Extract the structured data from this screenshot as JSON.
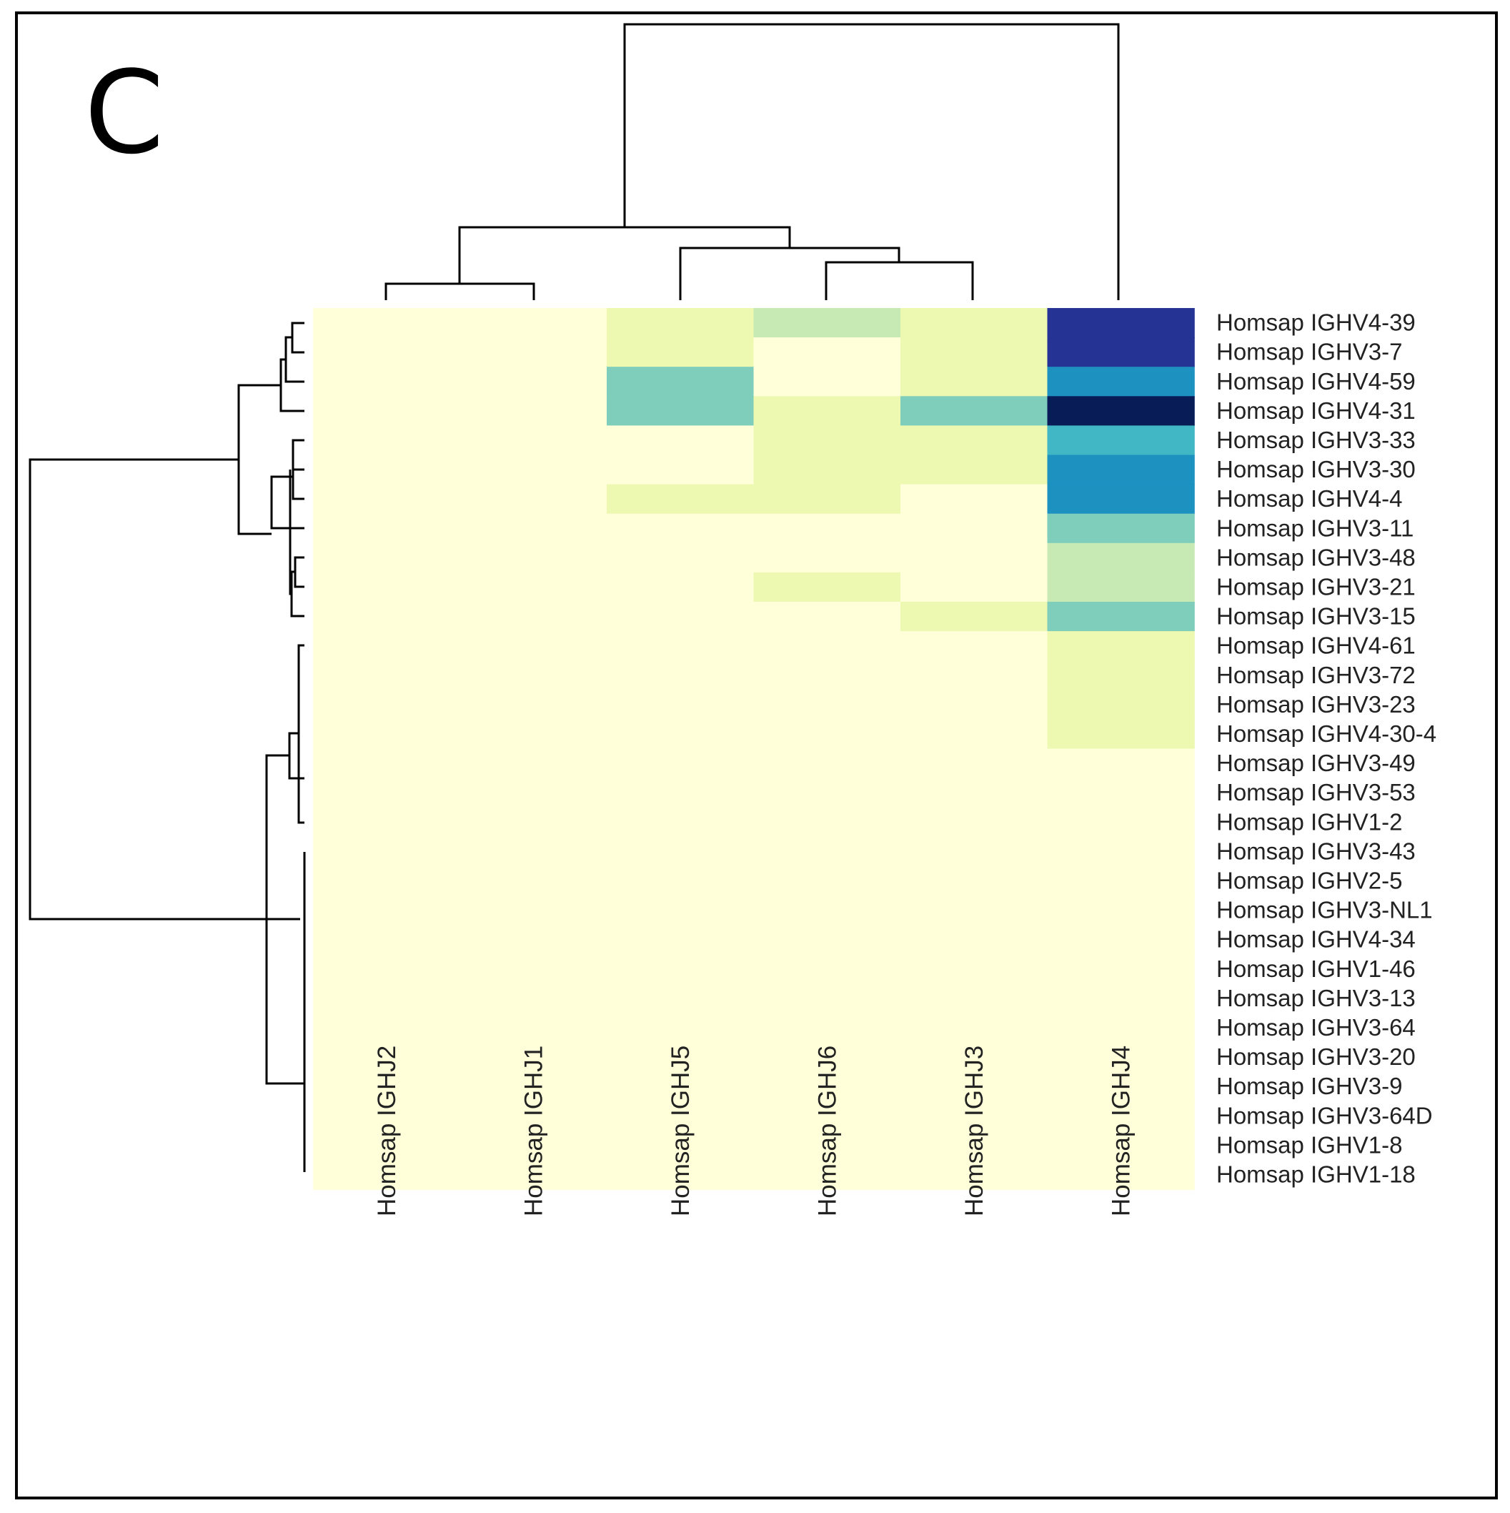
{
  "panel_label": "C",
  "chart_data": {
    "type": "heatmap",
    "title": "",
    "colorscale": [
      "#ffffd9",
      "#edf8b1",
      "#c7e9b4",
      "#7fcdbb",
      "#41b6c4",
      "#1d91c0",
      "#225ea8",
      "#253494",
      "#081d58"
    ],
    "columns": [
      "Homsap IGHJ2",
      "Homsap IGHJ1",
      "Homsap IGHJ5",
      "Homsap IGHJ6",
      "Homsap IGHJ3",
      "Homsap IGHJ4"
    ],
    "rows": [
      "Homsap IGHV4-39",
      "Homsap IGHV3-7",
      "Homsap IGHV4-59",
      "Homsap IGHV4-31",
      "Homsap IGHV3-33",
      "Homsap IGHV3-30",
      "Homsap IGHV4-4",
      "Homsap IGHV3-11",
      "Homsap IGHV3-48",
      "Homsap IGHV3-21",
      "Homsap IGHV3-15",
      "Homsap IGHV4-61",
      "Homsap IGHV3-72",
      "Homsap IGHV3-23",
      "Homsap IGHV4-30-4",
      "Homsap IGHV3-49",
      "Homsap IGHV3-53",
      "Homsap IGHV1-2",
      "Homsap IGHV3-43",
      "Homsap IGHV2-5",
      "Homsap IGHV3-NL1",
      "Homsap IGHV4-34",
      "Homsap IGHV1-46",
      "Homsap IGHV3-13",
      "Homsap IGHV3-64",
      "Homsap IGHV3-20",
      "Homsap IGHV3-9",
      "Homsap IGHV3-64D",
      "Homsap IGHV1-8",
      "Homsap IGHV1-18"
    ],
    "values": [
      [
        0,
        0,
        1,
        2,
        1,
        7
      ],
      [
        0,
        0,
        1,
        0,
        1,
        7
      ],
      [
        0,
        0,
        3,
        0,
        1,
        5
      ],
      [
        0,
        0,
        3,
        1,
        3,
        8
      ],
      [
        0,
        0,
        0,
        1,
        1,
        4
      ],
      [
        0,
        0,
        0,
        1,
        1,
        5
      ],
      [
        0,
        0,
        1,
        1,
        0,
        5
      ],
      [
        0,
        0,
        0,
        0,
        0,
        3
      ],
      [
        0,
        0,
        0,
        0,
        0,
        2
      ],
      [
        0,
        0,
        0,
        1,
        0,
        2
      ],
      [
        0,
        0,
        0,
        0,
        1,
        3
      ],
      [
        0,
        0,
        0,
        0,
        0,
        1
      ],
      [
        0,
        0,
        0,
        0,
        0,
        1
      ],
      [
        0,
        0,
        0,
        0,
        0,
        1
      ],
      [
        0,
        0,
        0,
        0,
        0,
        1
      ],
      [
        0,
        0,
        0,
        0,
        0,
        0
      ],
      [
        0,
        0,
        0,
        0,
        0,
        0
      ],
      [
        0,
        0,
        0,
        0,
        0,
        0
      ],
      [
        0,
        0,
        0,
        0,
        0,
        0
      ],
      [
        0,
        0,
        0,
        0,
        0,
        0
      ],
      [
        0,
        0,
        0,
        0,
        0,
        0
      ],
      [
        0,
        0,
        0,
        0,
        0,
        0
      ],
      [
        0,
        0,
        0,
        0,
        0,
        0
      ],
      [
        0,
        0,
        0,
        0,
        0,
        0
      ],
      [
        0,
        0,
        0,
        0,
        0,
        0
      ],
      [
        0,
        0,
        0,
        0,
        0,
        0
      ],
      [
        0,
        0,
        0,
        0,
        0,
        0
      ],
      [
        0,
        0,
        0,
        0,
        0,
        0
      ],
      [
        0,
        0,
        0,
        0,
        0,
        0
      ],
      [
        0,
        0,
        0,
        0,
        0,
        0
      ]
    ],
    "column_dendrogram": true,
    "row_dendrogram": true,
    "legend": "none"
  }
}
